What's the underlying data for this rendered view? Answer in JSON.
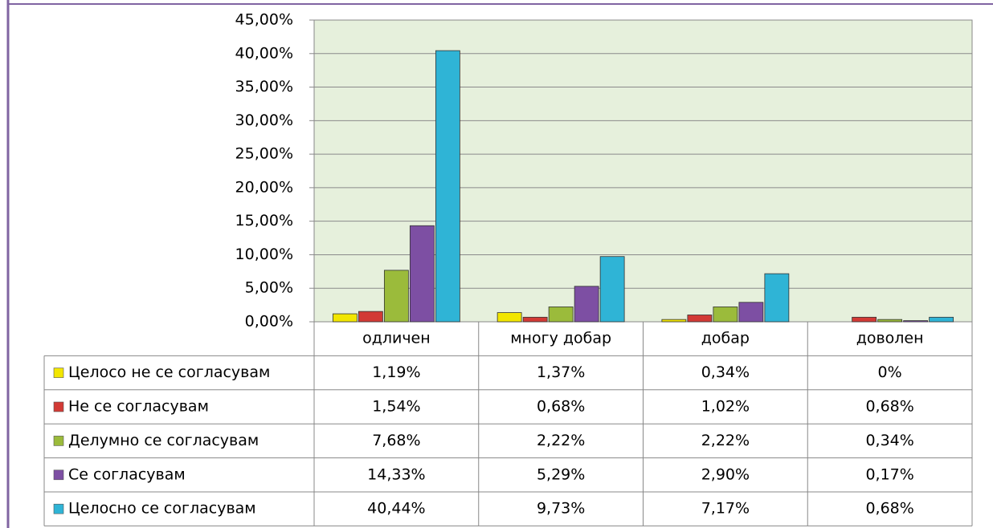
{
  "chart_data": {
    "type": "bar",
    "categories": [
      "одличен",
      "многу добар",
      "добар",
      "доволен"
    ],
    "series": [
      {
        "name": "Целосо не се согласувам",
        "color": "#f2e600",
        "values": [
          1.19,
          1.37,
          0.34,
          0
        ],
        "value_labels": [
          "1,19%",
          "1,37%",
          "0,34%",
          "0%"
        ]
      },
      {
        "name": "Не се согласувам",
        "color": "#d23a35",
        "values": [
          1.54,
          0.68,
          1.02,
          0.68
        ],
        "value_labels": [
          "1,54%",
          "0,68%",
          "1,02%",
          "0,68%"
        ]
      },
      {
        "name": "Делумно се согласувам",
        "color": "#9bbb3b",
        "values": [
          7.68,
          2.22,
          2.22,
          0.34
        ],
        "value_labels": [
          "7,68%",
          "2,22%",
          "2,22%",
          "0,34%"
        ]
      },
      {
        "name": "Се согласувам",
        "color": "#7d4fa3",
        "values": [
          14.33,
          5.29,
          2.9,
          0.17
        ],
        "value_labels": [
          "14,33%",
          "5,29%",
          "2,90%",
          "0,17%"
        ]
      },
      {
        "name": "Целосно се согласувам",
        "color": "#2fb4d6",
        "values": [
          40.44,
          9.73,
          7.17,
          0.68
        ],
        "value_labels": [
          "40,44%",
          "9,73%",
          "7,17%",
          "0,68%"
        ]
      }
    ],
    "ylim": [
      0,
      45
    ],
    "yticks": [
      {
        "value": 0,
        "label": "0,00%"
      },
      {
        "value": 5,
        "label": "5,00%"
      },
      {
        "value": 10,
        "label": "10,00%"
      },
      {
        "value": 15,
        "label": "15,00%"
      },
      {
        "value": 20,
        "label": "20,00%"
      },
      {
        "value": 25,
        "label": "25,00%"
      },
      {
        "value": 30,
        "label": "30,00%"
      },
      {
        "value": 35,
        "label": "35,00%"
      },
      {
        "value": 40,
        "label": "40,00%"
      },
      {
        "value": 45,
        "label": "45,00%"
      }
    ],
    "grid": true
  }
}
